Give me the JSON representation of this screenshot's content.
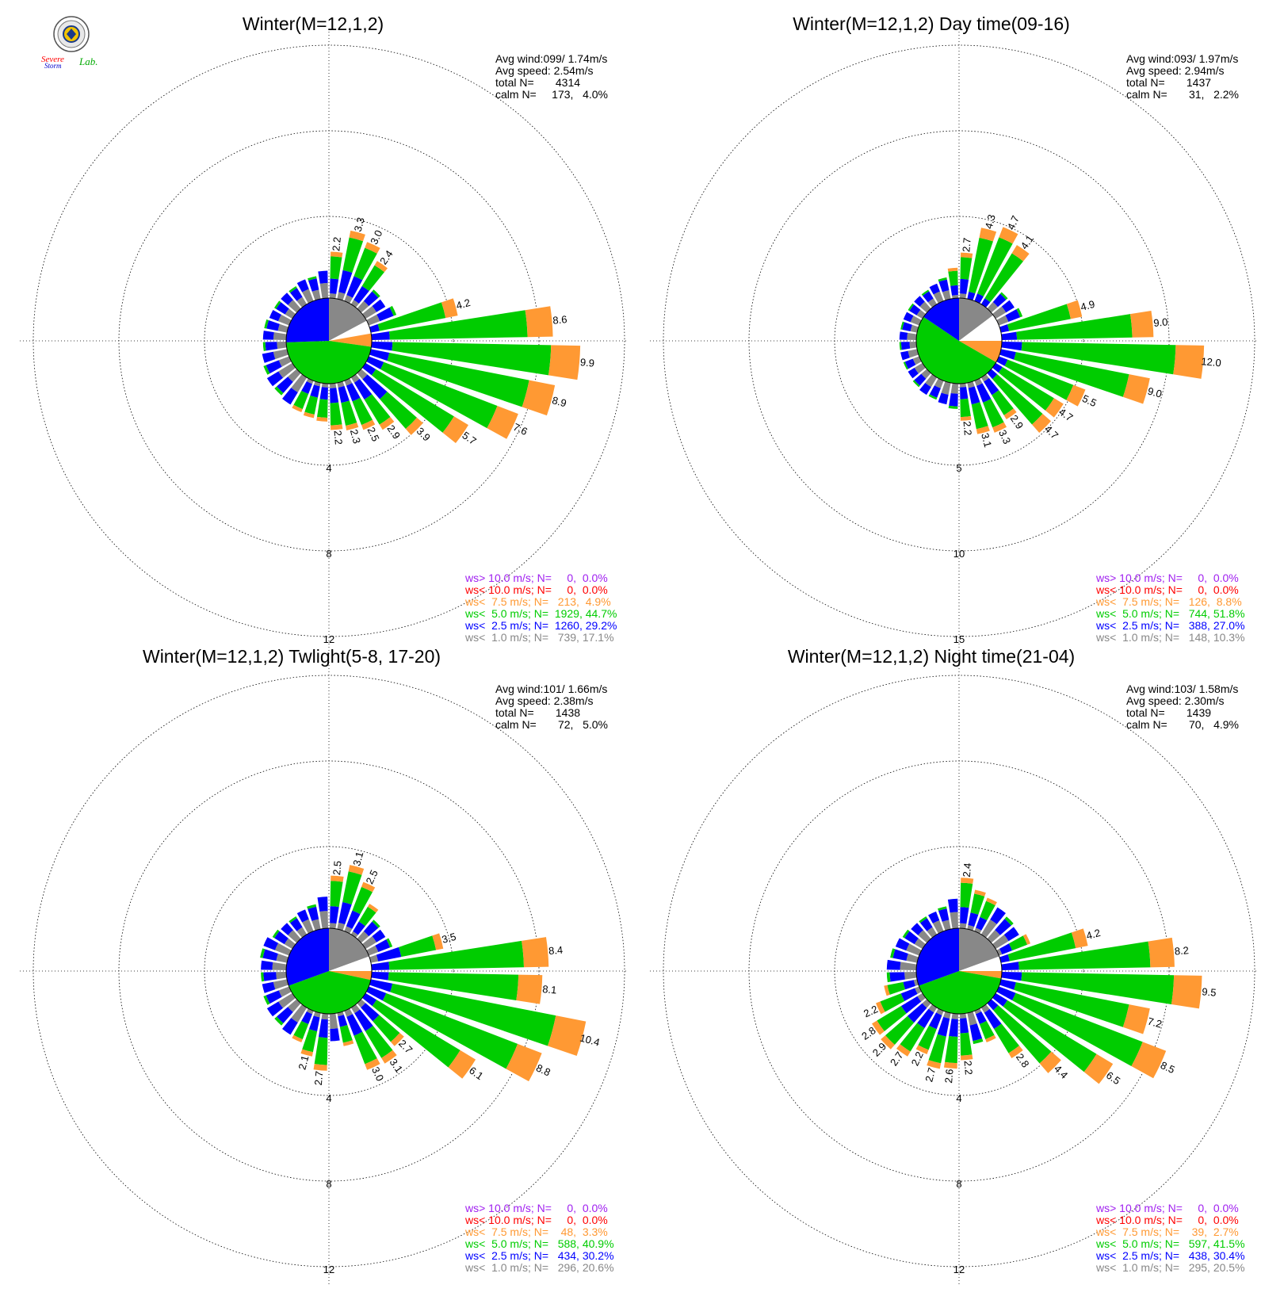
{
  "colors": {
    "ws_gt_10": "#a020f0",
    "ws_lt_10": "#ff0000",
    "ws_lt_7_5": "#ff9933",
    "ws_lt_5": "#00cc00",
    "ws_lt_2_5": "#0000ff",
    "ws_lt_1": "#888888"
  },
  "logo": {
    "icon": "severe-storm-lab-seal-icon",
    "text_line1": "Severe",
    "text_line2": "Storm",
    "text_lab": "Lab."
  },
  "chart_data": [
    {
      "type": "windrose",
      "title": "Winter(M=12,1,2)",
      "stats": {
        "avg_wind": "Avg wind:099/ 1.74m/s",
        "avg_speed": "Avg speed: 2.54m/s",
        "total_n": "total N=       4314",
        "calm_n": "calm N=     173,   4.0%"
      },
      "ring_labels": [
        "4",
        "8",
        "12"
      ],
      "ring_max": 12,
      "legend": [
        {
          "text": "ws> 10.0 m/s; N=     0,  0.0%",
          "color": "#a020f0"
        },
        {
          "text": "ws< 10.0 m/s; N=     0,  0.0%",
          "color": "#ff0000"
        },
        {
          "text": "ws<  7.5 m/s; N=   213,  4.9%",
          "color": "#ff9933"
        },
        {
          "text": "ws<  5.0 m/s; N=  1929, 44.7%",
          "color": "#00cc00"
        },
        {
          "text": "ws<  2.5 m/s; N=  1260, 29.2%",
          "color": "#0000ff"
        },
        {
          "text": "ws<  1.0 m/s; N=   739, 17.1%",
          "color": "#888888"
        }
      ],
      "pie_deg": {
        "gray": [
          0,
          62
        ],
        "white": [
          62,
          80
        ],
        "orange": [
          80,
          98
        ],
        "green": [
          98,
          268
        ],
        "blue": [
          268,
          360
        ]
      },
      "bars": [
        {
          "dir": 5,
          "v": 2.2,
          "label": "2.2"
        },
        {
          "dir": 15,
          "v": 3.3,
          "label": "3.3"
        },
        {
          "dir": 25,
          "v": 3.0,
          "label": "3.0"
        },
        {
          "dir": 35,
          "v": 2.4,
          "label": "2.4"
        },
        {
          "dir": 45,
          "v": 1.2
        },
        {
          "dir": 55,
          "v": 1.1
        },
        {
          "dir": 65,
          "v": 1.4
        },
        {
          "dir": 75,
          "v": 4.2,
          "label": "4.2"
        },
        {
          "dir": 85,
          "v": 8.6,
          "label": "8.6"
        },
        {
          "dir": 95,
          "v": 9.9,
          "label": "9.9"
        },
        {
          "dir": 105,
          "v": 8.9,
          "label": "8.9"
        },
        {
          "dir": 115,
          "v": 7.6,
          "label": "7.6"
        },
        {
          "dir": 125,
          "v": 5.7,
          "label": "5.7"
        },
        {
          "dir": 135,
          "v": 3.9,
          "label": "3.9"
        },
        {
          "dir": 145,
          "v": 2.9,
          "label": "2.9"
        },
        {
          "dir": 155,
          "v": 2.5,
          "label": "2.5"
        },
        {
          "dir": 165,
          "v": 2.3,
          "label": "2.3"
        },
        {
          "dir": 175,
          "v": 2.2,
          "label": "2.2"
        },
        {
          "dir": 185,
          "v": 1.8
        },
        {
          "dir": 195,
          "v": 1.7
        },
        {
          "dir": 205,
          "v": 1.6
        },
        {
          "dir": 215,
          "v": 1.5
        },
        {
          "dir": 225,
          "v": 1.4
        },
        {
          "dir": 235,
          "v": 1.4
        },
        {
          "dir": 245,
          "v": 1.3
        },
        {
          "dir": 255,
          "v": 1.2
        },
        {
          "dir": 265,
          "v": 1.1
        },
        {
          "dir": 275,
          "v": 1.1
        },
        {
          "dir": 285,
          "v": 1.1
        },
        {
          "dir": 295,
          "v": 1.0
        },
        {
          "dir": 305,
          "v": 1.0
        },
        {
          "dir": 315,
          "v": 1.0
        },
        {
          "dir": 325,
          "v": 1.0
        },
        {
          "dir": 335,
          "v": 1.1
        },
        {
          "dir": 345,
          "v": 1.1
        },
        {
          "dir": 355,
          "v": 1.3
        }
      ]
    },
    {
      "type": "windrose",
      "title": "Winter(M=12,1,2) Day time(09-16)",
      "stats": {
        "avg_wind": "Avg wind:093/ 1.97m/s",
        "avg_speed": "Avg speed: 2.94m/s",
        "total_n": "total N=       1437",
        "calm_n": "calm N=       31,   2.2%"
      },
      "ring_labels": [
        "5",
        "10",
        "15"
      ],
      "ring_max": 15,
      "legend": [
        {
          "text": "ws> 10.0 m/s; N=     0,  0.0%",
          "color": "#a020f0"
        },
        {
          "text": "ws< 10.0 m/s; N=     0,  0.0%",
          "color": "#ff0000"
        },
        {
          "text": "ws<  7.5 m/s; N=   126,  8.8%",
          "color": "#ff9933"
        },
        {
          "text": "ws<  5.0 m/s; N=   744, 51.8%",
          "color": "#00cc00"
        },
        {
          "text": "ws<  2.5 m/s; N=   388, 27.0%",
          "color": "#0000ff"
        },
        {
          "text": "ws<  1.0 m/s; N=   148, 10.3%",
          "color": "#888888"
        }
      ],
      "pie_deg": {
        "gray": [
          0,
          53
        ],
        "white": [
          53,
          90
        ],
        "orange": [
          90,
          120
        ],
        "green": [
          120,
          304
        ],
        "blue": [
          304,
          360
        ]
      },
      "bars": [
        {
          "dir": 5,
          "v": 2.7,
          "label": "2.7"
        },
        {
          "dir": 15,
          "v": 4.3,
          "label": "4.3"
        },
        {
          "dir": 25,
          "v": 4.7,
          "label": "4.7"
        },
        {
          "dir": 35,
          "v": 4.1,
          "label": "4.1"
        },
        {
          "dir": 45,
          "v": 1.3
        },
        {
          "dir": 55,
          "v": 1.3
        },
        {
          "dir": 65,
          "v": 1.5
        },
        {
          "dir": 75,
          "v": 4.9,
          "label": "4.9"
        },
        {
          "dir": 85,
          "v": 9.0,
          "label": "9.0"
        },
        {
          "dir": 95,
          "v": 12.0,
          "label": "12.0"
        },
        {
          "dir": 105,
          "v": 9.0,
          "label": "9.0"
        },
        {
          "dir": 115,
          "v": 5.5,
          "label": "5.5"
        },
        {
          "dir": 125,
          "v": 4.7,
          "label": "4.7"
        },
        {
          "dir": 135,
          "v": 4.7,
          "label": "4.7"
        },
        {
          "dir": 145,
          "v": 2.9,
          "label": "2.9"
        },
        {
          "dir": 155,
          "v": 3.3,
          "label": "3.3"
        },
        {
          "dir": 165,
          "v": 3.1,
          "label": "3.1"
        },
        {
          "dir": 175,
          "v": 2.2,
          "label": "2.2"
        },
        {
          "dir": 185,
          "v": 1.5
        },
        {
          "dir": 195,
          "v": 1.3
        },
        {
          "dir": 205,
          "v": 1.2
        },
        {
          "dir": 215,
          "v": 1.2
        },
        {
          "dir": 225,
          "v": 1.1
        },
        {
          "dir": 235,
          "v": 1.0
        },
        {
          "dir": 245,
          "v": 1.0
        },
        {
          "dir": 255,
          "v": 1.0
        },
        {
          "dir": 265,
          "v": 1.0
        },
        {
          "dir": 275,
          "v": 1.0
        },
        {
          "dir": 285,
          "v": 1.0
        },
        {
          "dir": 295,
          "v": 1.0
        },
        {
          "dir": 305,
          "v": 1.0
        },
        {
          "dir": 315,
          "v": 1.0
        },
        {
          "dir": 325,
          "v": 1.0
        },
        {
          "dir": 335,
          "v": 1.1
        },
        {
          "dir": 345,
          "v": 1.3
        },
        {
          "dir": 355,
          "v": 1.8
        }
      ]
    },
    {
      "type": "windrose",
      "title": "Winter(M=12,1,2) Twlight(5-8, 17-20)",
      "stats": {
        "avg_wind": "Avg wind:101/ 1.66m/s",
        "avg_speed": "Avg speed: 2.38m/s",
        "total_n": "total N=       1438",
        "calm_n": "calm N=       72,   5.0%"
      },
      "ring_labels": [
        "4",
        "8",
        "12"
      ],
      "ring_max": 12,
      "legend": [
        {
          "text": "ws> 10.0 m/s; N=     0,  0.0%",
          "color": "#a020f0"
        },
        {
          "text": "ws< 10.0 m/s; N=     0,  0.0%",
          "color": "#ff0000"
        },
        {
          "text": "ws<  7.5 m/s; N=    48,  3.3%",
          "color": "#ff9933"
        },
        {
          "text": "ws<  5.0 m/s; N=   588, 40.9%",
          "color": "#00cc00"
        },
        {
          "text": "ws<  2.5 m/s; N=   434, 30.2%",
          "color": "#0000ff"
        },
        {
          "text": "ws<  1.0 m/s; N=   296, 20.6%",
          "color": "#888888"
        }
      ],
      "pie_deg": {
        "gray": [
          0,
          70
        ],
        "white": [
          70,
          90
        ],
        "orange": [
          90,
          102
        ],
        "green": [
          102,
          250
        ],
        "blue": [
          250,
          360
        ]
      },
      "bars": [
        {
          "dir": 5,
          "v": 2.5,
          "label": "2.5"
        },
        {
          "dir": 15,
          "v": 3.1,
          "label": "3.1"
        },
        {
          "dir": 25,
          "v": 2.5,
          "label": "2.5"
        },
        {
          "dir": 35,
          "v": 1.7
        },
        {
          "dir": 45,
          "v": 1.2
        },
        {
          "dir": 55,
          "v": 1.1
        },
        {
          "dir": 65,
          "v": 1.2
        },
        {
          "dir": 75,
          "v": 3.5,
          "label": "3.5"
        },
        {
          "dir": 85,
          "v": 8.4,
          "label": "8.4"
        },
        {
          "dir": 95,
          "v": 8.1,
          "label": "8.1"
        },
        {
          "dir": 105,
          "v": 10.4,
          "label": "10.4"
        },
        {
          "dir": 115,
          "v": 8.8,
          "label": "8.8"
        },
        {
          "dir": 125,
          "v": 6.1,
          "label": "6.1"
        },
        {
          "dir": 135,
          "v": 2.7,
          "label": "2.7"
        },
        {
          "dir": 145,
          "v": 3.1,
          "label": "3.1"
        },
        {
          "dir": 155,
          "v": 3.0,
          "label": "3.0"
        },
        {
          "dir": 165,
          "v": 1.6
        },
        {
          "dir": 175,
          "v": 1.3
        },
        {
          "dir": 185,
          "v": 2.7,
          "label": "2.7"
        },
        {
          "dir": 195,
          "v": 2.1,
          "label": "2.1"
        },
        {
          "dir": 205,
          "v": 1.6
        },
        {
          "dir": 215,
          "v": 1.5
        },
        {
          "dir": 225,
          "v": 1.4
        },
        {
          "dir": 235,
          "v": 1.4
        },
        {
          "dir": 245,
          "v": 1.3
        },
        {
          "dir": 255,
          "v": 1.2
        },
        {
          "dir": 265,
          "v": 1.2
        },
        {
          "dir": 275,
          "v": 1.2
        },
        {
          "dir": 285,
          "v": 1.3
        },
        {
          "dir": 295,
          "v": 1.3
        },
        {
          "dir": 305,
          "v": 1.1
        },
        {
          "dir": 315,
          "v": 1.0
        },
        {
          "dir": 325,
          "v": 1.0
        },
        {
          "dir": 335,
          "v": 1.1
        },
        {
          "dir": 345,
          "v": 1.2
        },
        {
          "dir": 355,
          "v": 1.5
        }
      ]
    },
    {
      "type": "windrose",
      "title": "Winter(M=12,1,2) Night time(21-04)",
      "stats": {
        "avg_wind": "Avg wind:103/ 1.58m/s",
        "avg_speed": "Avg speed: 2.30m/s",
        "total_n": "total N=       1439",
        "calm_n": "calm N=       70,   4.9%"
      },
      "ring_labels": [
        "4",
        "8",
        "12"
      ],
      "ring_max": 12,
      "legend": [
        {
          "text": "ws> 10.0 m/s; N=     0,  0.0%",
          "color": "#a020f0"
        },
        {
          "text": "ws< 10.0 m/s; N=     0,  0.0%",
          "color": "#ff0000"
        },
        {
          "text": "ws<  7.5 m/s; N=    39,  2.7%",
          "color": "#ff9933"
        },
        {
          "text": "ws<  5.0 m/s; N=   597, 41.5%",
          "color": "#00cc00"
        },
        {
          "text": "ws<  2.5 m/s; N=   438, 30.4%",
          "color": "#0000ff"
        },
        {
          "text": "ws<  1.0 m/s; N=   295, 20.5%",
          "color": "#888888"
        }
      ],
      "pie_deg": {
        "gray": [
          0,
          70
        ],
        "white": [
          70,
          90
        ],
        "orange": [
          90,
          100
        ],
        "green": [
          100,
          250
        ],
        "blue": [
          250,
          360
        ]
      },
      "bars": [
        {
          "dir": 5,
          "v": 2.4,
          "label": "2.4"
        },
        {
          "dir": 15,
          "v": 1.9
        },
        {
          "dir": 25,
          "v": 1.7
        },
        {
          "dir": 35,
          "v": 1.5
        },
        {
          "dir": 45,
          "v": 1.4
        },
        {
          "dir": 55,
          "v": 1.3
        },
        {
          "dir": 65,
          "v": 1.6
        },
        {
          "dir": 75,
          "v": 4.2,
          "label": "4.2"
        },
        {
          "dir": 85,
          "v": 8.2,
          "label": "8.2"
        },
        {
          "dir": 95,
          "v": 9.5,
          "label": "9.5"
        },
        {
          "dir": 105,
          "v": 7.2,
          "label": "7.2"
        },
        {
          "dir": 115,
          "v": 8.5,
          "label": "8.5"
        },
        {
          "dir": 125,
          "v": 6.5,
          "label": "6.5"
        },
        {
          "dir": 135,
          "v": 4.4,
          "label": "4.4"
        },
        {
          "dir": 145,
          "v": 2.8,
          "label": "2.8"
        },
        {
          "dir": 155,
          "v": 1.6
        },
        {
          "dir": 165,
          "v": 1.5
        },
        {
          "dir": 175,
          "v": 2.2,
          "label": "2.2"
        },
        {
          "dir": 185,
          "v": 2.6,
          "label": "2.6"
        },
        {
          "dir": 195,
          "v": 2.7,
          "label": "2.7"
        },
        {
          "dir": 205,
          "v": 2.2,
          "label": "2.2"
        },
        {
          "dir": 215,
          "v": 2.7,
          "label": "2.7"
        },
        {
          "dir": 225,
          "v": 2.9,
          "label": "2.9"
        },
        {
          "dir": 235,
          "v": 2.8,
          "label": "2.8"
        },
        {
          "dir": 245,
          "v": 2.2,
          "label": "2.2"
        },
        {
          "dir": 255,
          "v": 1.6
        },
        {
          "dir": 265,
          "v": 1.4
        },
        {
          "dir": 275,
          "v": 1.4
        },
        {
          "dir": 285,
          "v": 1.3
        },
        {
          "dir": 295,
          "v": 1.2
        },
        {
          "dir": 305,
          "v": 1.1
        },
        {
          "dir": 315,
          "v": 1.0
        },
        {
          "dir": 325,
          "v": 1.0
        },
        {
          "dir": 335,
          "v": 1.0
        },
        {
          "dir": 345,
          "v": 1.1
        },
        {
          "dir": 355,
          "v": 1.4
        }
      ]
    }
  ]
}
